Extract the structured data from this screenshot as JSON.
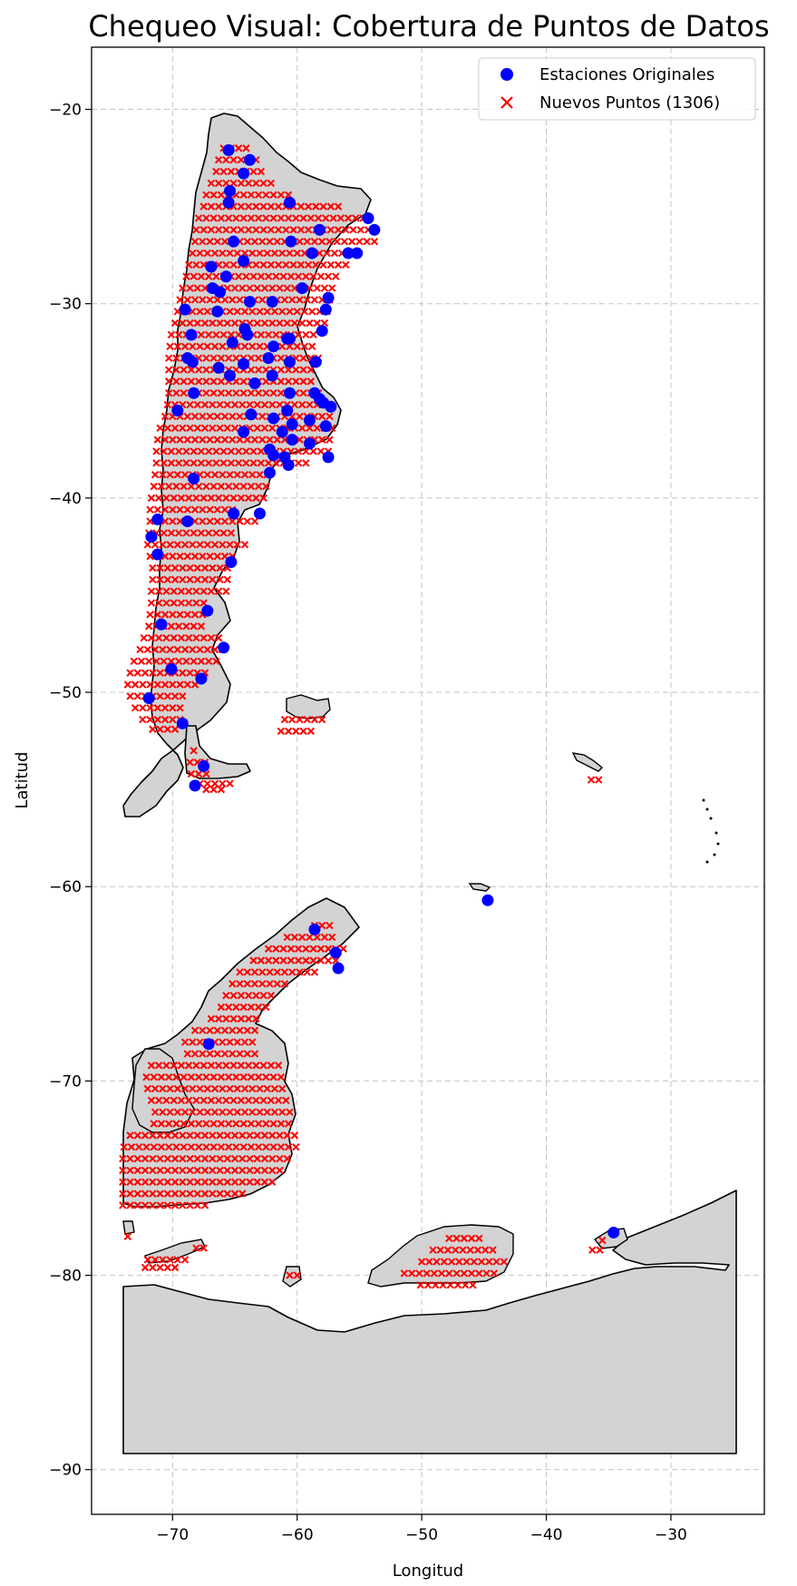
{
  "chart_data": {
    "type": "scatter",
    "title": "Chequeo Visual: Cobertura de Puntos de Datos",
    "xlabel": "Longitud",
    "ylabel": "Latitud",
    "xlim": [
      -76.5,
      -22.5
    ],
    "ylim": [
      -92.3,
      -16.8
    ],
    "xticks": [
      -70,
      -60,
      -50,
      -40,
      -30
    ],
    "yticks": [
      -20,
      -30,
      -40,
      -50,
      -60,
      -70,
      -80,
      -90
    ],
    "xtick_labels": [
      "−70",
      "−60",
      "−50",
      "−40",
      "−30"
    ],
    "ytick_labels": [
      "−20",
      "−30",
      "−40",
      "−50",
      "−60",
      "−70",
      "−80",
      "−90"
    ],
    "grid": true,
    "legend_position": "top-right",
    "colors": {
      "stations": "#0000ff",
      "new_points": "#ff0000",
      "land": "#d3d3d3"
    },
    "series": [
      {
        "name": "Estaciones Originales",
        "marker": "circle",
        "points": [
          [
            -65.5,
            -22.1
          ],
          [
            -64.3,
            -23.3
          ],
          [
            -63.8,
            -22.6
          ],
          [
            -65.4,
            -24.2
          ],
          [
            -65.5,
            -24.8
          ],
          [
            -60.6,
            -24.8
          ],
          [
            -54.3,
            -25.6
          ],
          [
            -53.8,
            -26.2
          ],
          [
            -58.2,
            -26.2
          ],
          [
            -65.1,
            -26.8
          ],
          [
            -60.5,
            -26.8
          ],
          [
            -55.9,
            -27.4
          ],
          [
            -55.2,
            -27.4
          ],
          [
            -58.8,
            -27.4
          ],
          [
            -64.3,
            -27.8
          ],
          [
            -66.9,
            -28.1
          ],
          [
            -65.7,
            -28.6
          ],
          [
            -66.8,
            -29.2
          ],
          [
            -66.2,
            -29.4
          ],
          [
            -59.6,
            -29.2
          ],
          [
            -57.5,
            -29.7
          ],
          [
            -63.8,
            -29.9
          ],
          [
            -62.0,
            -29.9
          ],
          [
            -69.0,
            -30.3
          ],
          [
            -66.4,
            -30.4
          ],
          [
            -57.7,
            -30.3
          ],
          [
            -64.2,
            -31.3
          ],
          [
            -64.0,
            -31.6
          ],
          [
            -68.5,
            -31.6
          ],
          [
            -58.0,
            -31.4
          ],
          [
            -60.8,
            -31.8
          ],
          [
            -60.6,
            -31.8
          ],
          [
            -65.2,
            -32.0
          ],
          [
            -61.9,
            -32.2
          ],
          [
            -68.8,
            -32.8
          ],
          [
            -62.3,
            -32.8
          ],
          [
            -68.4,
            -33.0
          ],
          [
            -64.3,
            -33.1
          ],
          [
            -60.6,
            -33.0
          ],
          [
            -58.5,
            -33.0
          ],
          [
            -66.3,
            -33.3
          ],
          [
            -62.0,
            -33.7
          ],
          [
            -65.4,
            -33.7
          ],
          [
            -63.4,
            -34.1
          ],
          [
            -68.3,
            -34.6
          ],
          [
            -58.6,
            -34.6
          ],
          [
            -60.6,
            -34.6
          ],
          [
            -58.2,
            -34.9
          ],
          [
            -57.9,
            -35.1
          ],
          [
            -57.3,
            -35.3
          ],
          [
            -69.6,
            -35.5
          ],
          [
            -60.8,
            -35.5
          ],
          [
            -63.7,
            -35.7
          ],
          [
            -61.9,
            -35.9
          ],
          [
            -59.0,
            -36.0
          ],
          [
            -60.4,
            -36.2
          ],
          [
            -57.7,
            -36.3
          ],
          [
            -61.2,
            -36.6
          ],
          [
            -64.3,
            -36.6
          ],
          [
            -60.4,
            -37.0
          ],
          [
            -59.0,
            -37.2
          ],
          [
            -62.2,
            -37.5
          ],
          [
            -61.9,
            -37.8
          ],
          [
            -57.5,
            -37.9
          ],
          [
            -61.0,
            -37.9
          ],
          [
            -60.7,
            -38.3
          ],
          [
            -62.2,
            -38.7
          ],
          [
            -68.3,
            -39.0
          ],
          [
            -63.0,
            -40.8
          ],
          [
            -65.1,
            -40.8
          ],
          [
            -71.2,
            -41.1
          ],
          [
            -68.8,
            -41.2
          ],
          [
            -71.7,
            -42.0
          ],
          [
            -71.2,
            -42.9
          ],
          [
            -65.3,
            -43.3
          ],
          [
            -67.2,
            -45.8
          ],
          [
            -70.9,
            -46.5
          ],
          [
            -65.9,
            -47.7
          ],
          [
            -70.1,
            -48.8
          ],
          [
            -67.7,
            -49.3
          ],
          [
            -71.9,
            -50.3
          ],
          [
            -69.2,
            -51.6
          ],
          [
            -67.5,
            -53.8
          ],
          [
            -68.2,
            -54.8
          ],
          [
            -58.6,
            -62.2
          ],
          [
            -56.9,
            -63.4
          ],
          [
            -56.7,
            -64.2
          ],
          [
            -44.7,
            -60.7
          ],
          [
            -67.1,
            -68.1
          ],
          [
            -34.6,
            -77.8
          ]
        ]
      },
      {
        "name": "Nuevos Puntos (1306)",
        "marker": "x",
        "regions": [
          {
            "rows": [
              [
                -22.0,
                -65.9,
                -63.6
              ],
              [
                -22.6,
                -66.3,
                -62.8
              ],
              [
                -23.2,
                -66.5,
                -62.4
              ],
              [
                -23.8,
                -66.9,
                -61.6
              ],
              [
                -24.4,
                -67.3,
                -60.7
              ],
              [
                -25.0,
                -67.5,
                -56.4
              ],
              [
                -25.6,
                -67.9,
                -54.3
              ],
              [
                -26.2,
                -68.1,
                -53.8
              ],
              [
                -26.8,
                -68.2,
                -53.7
              ],
              [
                -27.4,
                -68.4,
                -54.9
              ],
              [
                -28.0,
                -68.7,
                -55.6
              ],
              [
                -28.6,
                -68.9,
                -56.4
              ],
              [
                -29.2,
                -69.2,
                -57.0
              ],
              [
                -29.8,
                -69.4,
                -57.3
              ],
              [
                -30.4,
                -69.6,
                -57.6
              ],
              [
                -31.0,
                -69.8,
                -57.8
              ],
              [
                -31.6,
                -70.1,
                -58.2
              ],
              [
                -32.2,
                -70.2,
                -58.3
              ],
              [
                -32.8,
                -70.3,
                -58.2
              ],
              [
                -33.4,
                -70.3,
                -58.4
              ],
              [
                -34.0,
                -70.3,
                -58.4
              ],
              [
                -34.6,
                -70.3,
                -58.2
              ],
              [
                -35.2,
                -70.4,
                -57.4
              ],
              [
                -35.8,
                -70.6,
                -57.1
              ],
              [
                -36.4,
                -71.0,
                -56.8
              ],
              [
                -37.0,
                -71.2,
                -57.0
              ],
              [
                -37.6,
                -71.3,
                -57.4
              ],
              [
                -38.2,
                -71.3,
                -58.9
              ],
              [
                -38.8,
                -71.4,
                -62.0
              ],
              [
                -39.4,
                -71.5,
                -62.4
              ],
              [
                -40.0,
                -71.7,
                -62.6
              ],
              [
                -40.6,
                -71.8,
                -64.8
              ],
              [
                -41.2,
                -71.8,
                -63.4
              ],
              [
                -41.8,
                -71.9,
                -64.9
              ],
              [
                -42.4,
                -72.0,
                -64.2
              ],
              [
                -43.0,
                -71.8,
                -64.9
              ],
              [
                -43.6,
                -71.6,
                -65.4
              ],
              [
                -44.2,
                -71.6,
                -65.5
              ],
              [
                -44.8,
                -71.7,
                -65.7
              ],
              [
                -45.4,
                -71.7,
                -67.3
              ],
              [
                -46.0,
                -71.8,
                -67.5
              ],
              [
                -46.6,
                -71.9,
                -67.2
              ],
              [
                -47.2,
                -72.3,
                -66.2
              ],
              [
                -47.8,
                -72.6,
                -65.8
              ],
              [
                -48.4,
                -73.1,
                -66.5
              ],
              [
                -49.0,
                -73.4,
                -67.3
              ],
              [
                -49.6,
                -73.6,
                -67.9
              ],
              [
                -50.2,
                -73.4,
                -68.7
              ],
              [
                -50.8,
                -73.0,
                -69.0
              ],
              [
                -51.4,
                -72.4,
                -69.3
              ],
              [
                -51.9,
                -71.6,
                -69.4
              ]
            ]
          },
          {
            "rows": [
              [
                -51.4,
                -61.0,
                -57.9
              ],
              [
                -52.0,
                -61.3,
                -58.5
              ],
              [
                -53.0,
                -68.3,
                -68.1
              ],
              [
                -53.6,
                -68.6,
                -67.4
              ],
              [
                -54.2,
                -68.5,
                -66.8
              ],
              [
                -54.7,
                -67.8,
                -65.2
              ],
              [
                -55.0,
                -67.3,
                -66.1
              ],
              [
                -54.5,
                -36.4,
                -35.8
              ]
            ]
          },
          {
            "rows": [
              [
                -62.0,
                -58.6,
                -57.4
              ],
              [
                -62.6,
                -60.8,
                -57.2
              ],
              [
                -63.2,
                -62.3,
                -55.9
              ],
              [
                -63.8,
                -63.5,
                -56.4
              ],
              [
                -64.4,
                -64.6,
                -58.1
              ],
              [
                -65.0,
                -65.2,
                -60.6
              ],
              [
                -65.6,
                -65.7,
                -61.8
              ],
              [
                -66.2,
                -66.1,
                -62.4
              ],
              [
                -66.8,
                -66.9,
                -62.8
              ],
              [
                -67.4,
                -68.2,
                -62.9
              ],
              [
                -68.0,
                -69.0,
                -63.3
              ],
              [
                -68.6,
                -68.8,
                -63.2
              ]
            ]
          },
          {
            "rows": [
              [
                -69.2,
                -71.7,
                -61.0
              ],
              [
                -69.8,
                -72.1,
                -60.8
              ],
              [
                -70.4,
                -72.0,
                -61.0
              ],
              [
                -71.0,
                -71.7,
                -60.8
              ],
              [
                -71.6,
                -71.4,
                -60.5
              ],
              [
                -72.2,
                -71.5,
                -60.3
              ],
              [
                -72.8,
                -73.4,
                -60.2
              ],
              [
                -73.4,
                -73.9,
                -60.1
              ],
              [
                -74.0,
                -74.0,
                -60.3
              ],
              [
                -74.6,
                -74.0,
                -61.0
              ],
              [
                -75.2,
                -74.0,
                -61.8
              ],
              [
                -75.8,
                -74.0,
                -64.3
              ],
              [
                -76.4,
                -74.0,
                -67.2
              ]
            ]
          },
          {
            "rows": [
              [
                -78.0,
                -73.6,
                -73.3
              ],
              [
                -78.6,
                -68.1,
                -67.0
              ],
              [
                -79.2,
                -72.0,
                -68.6
              ],
              [
                -79.6,
                -72.2,
                -69.8
              ],
              [
                -80.0,
                -60.6,
                -59.8
              ]
            ]
          },
          {
            "rows": [
              [
                -78.1,
                -47.8,
                -45.0
              ],
              [
                -78.7,
                -49.1,
                -43.9
              ],
              [
                -79.3,
                -50.0,
                -43.1
              ],
              [
                -79.9,
                -51.4,
                -44.2
              ],
              [
                -80.5,
                -50.1,
                -45.5
              ],
              [
                -78.2,
                -35.5,
                -35.0
              ],
              [
                -78.7,
                -36.3,
                -35.2
              ]
            ]
          }
        ]
      }
    ]
  }
}
